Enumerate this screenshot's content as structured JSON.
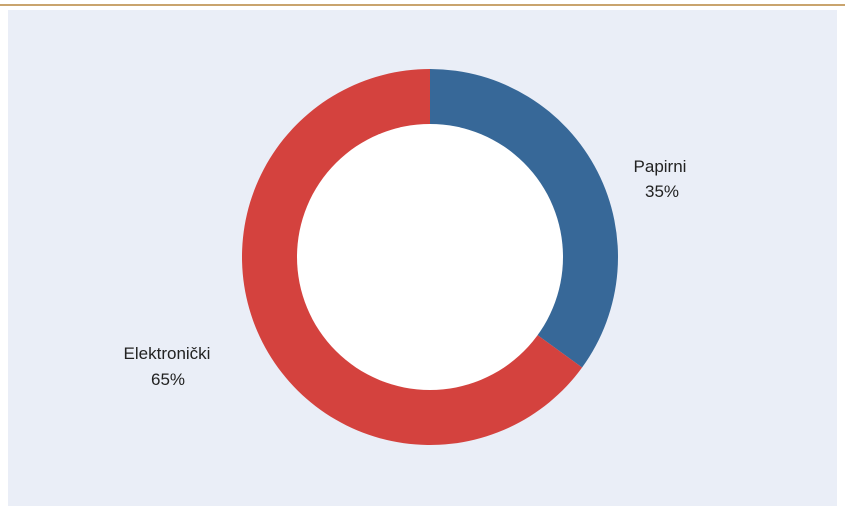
{
  "colors": {
    "background": "#ffffff",
    "panel": "#eaeef7",
    "top_rule": "#c9a46e",
    "hole": "#ffffff"
  },
  "chart_data": {
    "type": "pie",
    "style": "donut",
    "title": "",
    "categories": [
      "Papirni",
      "Elektronički"
    ],
    "values": [
      35,
      65
    ],
    "value_labels": [
      "35%",
      "65%"
    ],
    "colors": [
      "#376898",
      "#d4423e"
    ],
    "start_angle_deg": 0,
    "direction": "clockwise"
  }
}
